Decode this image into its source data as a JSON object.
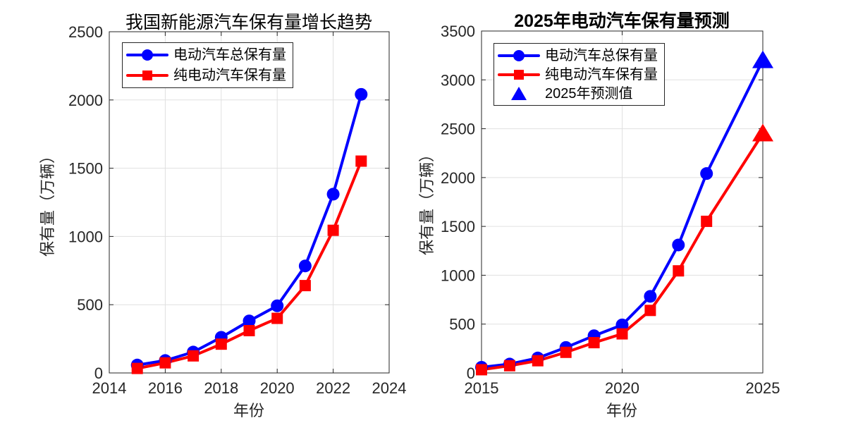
{
  "figure": {
    "background": "#ffffff",
    "axis_color": "#262626",
    "grid_color": "#e0e0e0",
    "series_colors": {
      "total_ev": "#0000ff",
      "pure_ev": "#ff0000"
    }
  },
  "chart_data": [
    {
      "type": "line",
      "title": "我国新能源汽车保有量增长趋势",
      "xlabel": "年份",
      "ylabel": "保有量（万辆）",
      "xlim": [
        2014,
        2024
      ],
      "ylim": [
        0,
        2500
      ],
      "xticks": [
        2014,
        2016,
        2018,
        2020,
        2022,
        2024
      ],
      "yticks": [
        0,
        500,
        1000,
        1500,
        2000,
        2500
      ],
      "grid": true,
      "legend_position": "top-left",
      "series": [
        {
          "name": "电动汽车总保有量",
          "color": "#0000ff",
          "marker": "circle",
          "x": [
            2015,
            2016,
            2017,
            2018,
            2019,
            2020,
            2021,
            2022,
            2023
          ],
          "y": [
            58,
            91,
            153,
            261,
            381,
            492,
            784,
            1310,
            2041
          ]
        },
        {
          "name": "纯电动汽车保有量",
          "color": "#ff0000",
          "marker": "square",
          "x": [
            2015,
            2016,
            2017,
            2018,
            2019,
            2020,
            2021,
            2022,
            2023
          ],
          "y": [
            33,
            74,
            125,
            211,
            310,
            400,
            640,
            1045,
            1552
          ]
        }
      ]
    },
    {
      "type": "line",
      "title": "2025年电动汽车保有量预测",
      "xlabel": "年份",
      "ylabel": "保有量（万辆）",
      "xlim": [
        2015,
        2025
      ],
      "ylim": [
        0,
        3500
      ],
      "xticks": [
        2015,
        2020,
        2025
      ],
      "yticks": [
        0,
        500,
        1000,
        1500,
        2000,
        2500,
        3000,
        3500
      ],
      "grid": true,
      "legend_position": "top-left",
      "series": [
        {
          "name": "电动汽车总保有量",
          "color": "#0000ff",
          "marker": "circle",
          "end_marker": "triangle",
          "x": [
            2015,
            2016,
            2017,
            2018,
            2019,
            2020,
            2021,
            2022,
            2023,
            2025
          ],
          "y": [
            58,
            91,
            153,
            261,
            381,
            492,
            784,
            1310,
            2041,
            3200
          ]
        },
        {
          "name": "纯电动汽车保有量",
          "color": "#ff0000",
          "marker": "square",
          "end_marker": "triangle",
          "x": [
            2015,
            2016,
            2017,
            2018,
            2019,
            2020,
            2021,
            2022,
            2023,
            2025
          ],
          "y": [
            33,
            74,
            125,
            211,
            310,
            400,
            640,
            1045,
            1552,
            2450
          ]
        },
        {
          "name": "2025年预测值",
          "color": "#0000ff",
          "marker": "triangle",
          "legend_only": true
        }
      ]
    }
  ]
}
